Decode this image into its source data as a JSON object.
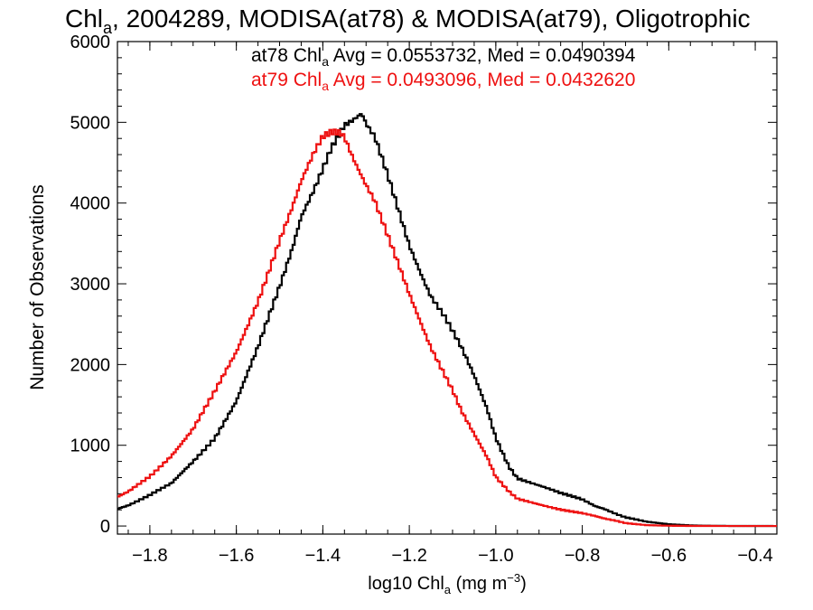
{
  "chart_data": {
    "type": "line",
    "title_parts": [
      "Chl",
      "a",
      ", 2004289, MODISA(at78) & MODISA(at79), Oligotrophic"
    ],
    "xlabel_parts": [
      "log10 Chl",
      "a",
      " (mg m",
      "−3",
      ")"
    ],
    "ylabel": "Number of Observations",
    "xlim": [
      -1.875,
      -0.35
    ],
    "ylim": [
      -100,
      6000
    ],
    "xticks": [
      -1.8,
      -1.6,
      -1.4,
      -1.2,
      -1.0,
      -0.8,
      -0.6,
      -0.4
    ],
    "xtick_labels": [
      "−1.8",
      "−1.6",
      "−1.4",
      "−1.2",
      "−1.0",
      "−0.8",
      "−0.6",
      "−0.4"
    ],
    "yticks": [
      0,
      1000,
      2000,
      3000,
      4000,
      5000,
      6000
    ],
    "ytick_labels": [
      "0",
      "1000",
      "2000",
      "3000",
      "4000",
      "5000",
      "6000"
    ],
    "series": [
      {
        "color": "#000000",
        "stats": [
          "at78 Chl",
          "a",
          " Avg = 0.0553732, Med = 0.0490394"
        ],
        "x": [
          -1.875,
          -1.85,
          -1.8,
          -1.75,
          -1.7,
          -1.65,
          -1.6,
          -1.55,
          -1.5,
          -1.47,
          -1.45,
          -1.42,
          -1.4,
          -1.38,
          -1.35,
          -1.33,
          -1.31,
          -1.3,
          -1.28,
          -1.25,
          -1.22,
          -1.2,
          -1.17,
          -1.15,
          -1.12,
          -1.1,
          -1.08,
          -1.05,
          -1.02,
          -1.0,
          -0.97,
          -0.95,
          -0.9,
          -0.85,
          -0.8,
          -0.77,
          -0.75,
          -0.72,
          -0.7,
          -0.65,
          -0.6,
          -0.55,
          -0.5,
          -0.45,
          -0.4,
          -0.35
        ],
        "y": [
          220,
          260,
          380,
          520,
          800,
          1100,
          1550,
          2200,
          2950,
          3450,
          3850,
          4200,
          4450,
          4700,
          4950,
          5000,
          5080,
          4950,
          4800,
          4350,
          3850,
          3500,
          3100,
          2850,
          2600,
          2400,
          2200,
          1850,
          1450,
          1100,
          750,
          600,
          500,
          400,
          330,
          250,
          220,
          150,
          110,
          50,
          20,
          8,
          3,
          1,
          0,
          0
        ]
      },
      {
        "color": "#ee1111",
        "stats": [
          "at79 Chl",
          "a",
          " Avg = 0.0493096, Med = 0.0432620"
        ],
        "x": [
          -1.875,
          -1.85,
          -1.8,
          -1.75,
          -1.7,
          -1.65,
          -1.6,
          -1.55,
          -1.5,
          -1.47,
          -1.45,
          -1.42,
          -1.4,
          -1.38,
          -1.36,
          -1.35,
          -1.33,
          -1.3,
          -1.28,
          -1.25,
          -1.22,
          -1.2,
          -1.17,
          -1.15,
          -1.12,
          -1.1,
          -1.08,
          -1.05,
          -1.02,
          -1.0,
          -0.97,
          -0.95,
          -0.9,
          -0.85,
          -0.8,
          -0.77,
          -0.75,
          -0.72,
          -0.7,
          -0.65,
          -0.6,
          -0.55,
          -0.5,
          -0.45,
          -0.4,
          -0.35
        ],
        "y": [
          350,
          420,
          620,
          880,
          1200,
          1650,
          2150,
          2800,
          3550,
          3950,
          4250,
          4600,
          4800,
          4870,
          4880,
          4830,
          4580,
          4250,
          4050,
          3600,
          3150,
          2850,
          2450,
          2200,
          1900,
          1700,
          1450,
          1150,
          850,
          600,
          420,
          330,
          270,
          210,
          160,
          120,
          90,
          60,
          35,
          12,
          4,
          1,
          0,
          0,
          0,
          0
        ]
      }
    ],
    "grid": false,
    "legend": "top-center"
  }
}
